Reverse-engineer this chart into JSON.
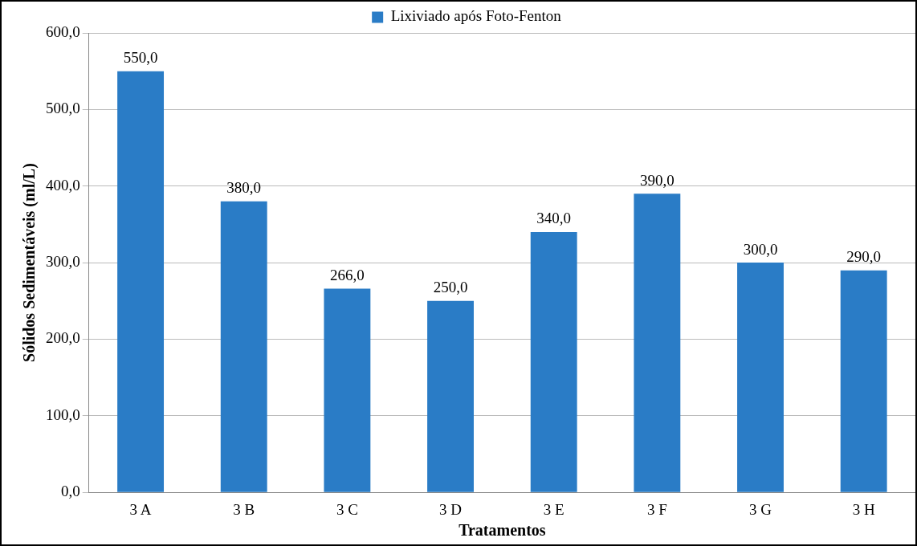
{
  "chart_data": {
    "type": "bar",
    "xlabel": "Tratamentos",
    "ylabel": "Sólidos Sedimentáveis (ml/L)",
    "categories": [
      "3 A",
      "3 B",
      "3 C",
      "3 D",
      "3 E",
      "3 F",
      "3 G",
      "3 H"
    ],
    "series": [
      {
        "name": "Lixiviado após Foto-Fenton",
        "color": "#2a7cc6",
        "values": [
          550,
          380,
          266,
          250,
          340,
          390,
          300,
          290
        ],
        "value_labels": [
          "550,0",
          "380,0",
          "266,0",
          "250,0",
          "340,0",
          "390,0",
          "300,0",
          "290,0"
        ]
      }
    ],
    "ylim": [
      0,
      600
    ],
    "yticks": [
      {
        "value": 0,
        "label": "0,0"
      },
      {
        "value": 100,
        "label": "100,0"
      },
      {
        "value": 200,
        "label": "200,0"
      },
      {
        "value": 300,
        "label": "300,0"
      },
      {
        "value": 400,
        "label": "400,0"
      },
      {
        "value": 500,
        "label": "500,0"
      },
      {
        "value": 600,
        "label": "600,0"
      }
    ],
    "grid": "y",
    "legend": "top"
  }
}
